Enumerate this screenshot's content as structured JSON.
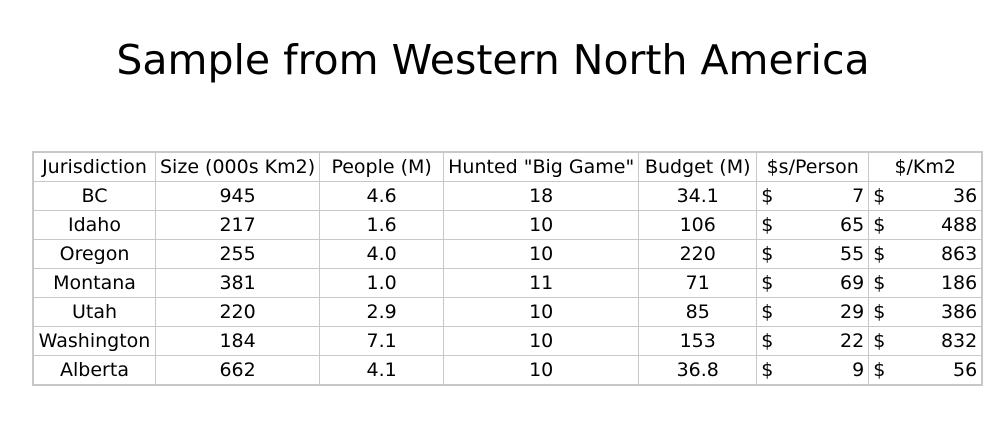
{
  "title": "Sample from Western North America",
  "table": {
    "headers": [
      "Jurisdiction",
      "Size (000s Km2)",
      "People (M)",
      "Hunted \"Big Game\"",
      "Budget (M)",
      "$s/Person",
      "$/Km2"
    ],
    "rows": [
      {
        "jurisdiction": "BC",
        "size": "945",
        "people": "4.6",
        "hunted": "18",
        "budget": "34.1",
        "per_person_sym": "$",
        "per_person": "7",
        "per_km2_sym": "$",
        "per_km2": "36"
      },
      {
        "jurisdiction": "Idaho",
        "size": "217",
        "people": "1.6",
        "hunted": "10",
        "budget": "106",
        "per_person_sym": "$",
        "per_person": "65",
        "per_km2_sym": "$",
        "per_km2": "488"
      },
      {
        "jurisdiction": "Oregon",
        "size": "255",
        "people": "4.0",
        "hunted": "10",
        "budget": "220",
        "per_person_sym": "$",
        "per_person": "55",
        "per_km2_sym": "$",
        "per_km2": "863"
      },
      {
        "jurisdiction": "Montana",
        "size": "381",
        "people": "1.0",
        "hunted": "11",
        "budget": "71",
        "per_person_sym": "$",
        "per_person": "69",
        "per_km2_sym": "$",
        "per_km2": "186"
      },
      {
        "jurisdiction": "Utah",
        "size": "220",
        "people": "2.9",
        "hunted": "10",
        "budget": "85",
        "per_person_sym": "$",
        "per_person": "29",
        "per_km2_sym": "$",
        "per_km2": "386"
      },
      {
        "jurisdiction": "Washington",
        "size": "184",
        "people": "7.1",
        "hunted": "10",
        "budget": "153",
        "per_person_sym": "$",
        "per_person": "22",
        "per_km2_sym": "$",
        "per_km2": "832"
      },
      {
        "jurisdiction": "Alberta",
        "size": "662",
        "people": "4.1",
        "hunted": "10",
        "budget": "36.8",
        "per_person_sym": "$",
        "per_person": "9",
        "per_km2_sym": "$",
        "per_km2": "56"
      }
    ]
  }
}
